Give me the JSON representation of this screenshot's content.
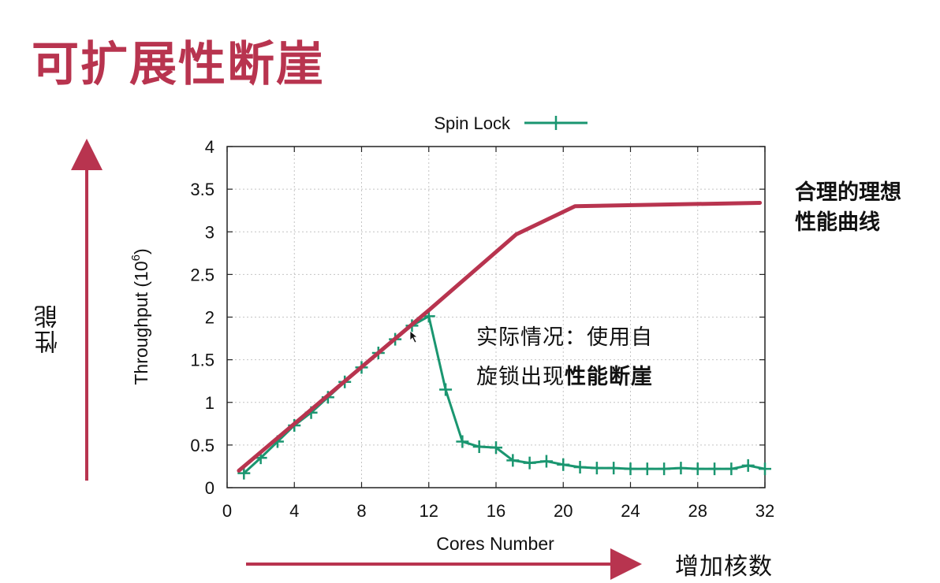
{
  "slide": {
    "title": "可扩展性断崖",
    "y_arrow_label": "性能",
    "x_arrow_label": "增加核数",
    "ideal_note": {
      "line1": "合理的理想",
      "line2": "性能曲线"
    },
    "actual_note": {
      "line1": "实际情况：使用自",
      "line2_normal": "旋锁出现",
      "line2_bold": "性能断崖"
    },
    "accent_color": "#b8344f"
  },
  "chart_data": {
    "type": "line",
    "title": "",
    "xlabel": "Cores Number",
    "ylabel": "Throughput (10^6)",
    "ylabel_main": "Throughput (10",
    "ylabel_exp": "6",
    "ylabel_tail": ")",
    "xlim": [
      0,
      32
    ],
    "ylim": [
      0,
      4
    ],
    "xticks": [
      0,
      4,
      8,
      12,
      16,
      20,
      24,
      28,
      32
    ],
    "xtick_labels": [
      "0",
      "4",
      "8",
      "12",
      "16",
      "20",
      "24",
      "28",
      "32"
    ],
    "yticks": [
      0,
      0.5,
      1,
      1.5,
      2,
      2.5,
      3,
      3.5,
      4
    ],
    "ytick_labels": [
      "0",
      "0.5",
      "1",
      "1.5",
      "2",
      "2.5",
      "3",
      "3.5",
      "4"
    ],
    "grid": true,
    "legend_position": "top-center",
    "series": [
      {
        "name": "Spin Lock",
        "color": "#1a9670",
        "marker": "plus",
        "x": [
          1,
          2,
          3,
          4,
          5,
          6,
          7,
          8,
          9,
          10,
          11,
          12,
          13,
          14,
          15,
          16,
          17,
          18,
          19,
          20,
          21,
          22,
          23,
          24,
          25,
          26,
          27,
          28,
          29,
          30,
          31,
          32
        ],
        "y": [
          0.17,
          0.35,
          0.54,
          0.73,
          0.88,
          1.06,
          1.24,
          1.41,
          1.58,
          1.74,
          1.9,
          2.01,
          1.15,
          0.54,
          0.48,
          0.47,
          0.32,
          0.29,
          0.31,
          0.27,
          0.24,
          0.23,
          0.23,
          0.22,
          0.22,
          0.22,
          0.23,
          0.22,
          0.22,
          0.22,
          0.26,
          0.22
        ]
      },
      {
        "color": "#b8344f",
        "marker": "none",
        "x": [
          0.7,
          12,
          17.2,
          20.7,
          31.7
        ],
        "y": [
          0.2,
          2.08,
          2.97,
          3.3,
          3.34
        ]
      }
    ]
  }
}
